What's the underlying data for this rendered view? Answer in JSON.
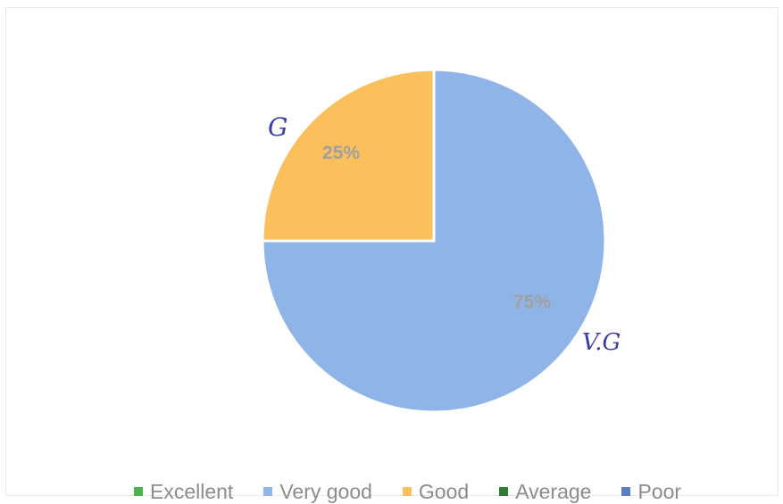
{
  "chart_data": {
    "type": "pie",
    "slices": [
      {
        "category": "Good",
        "value": 25,
        "label": "25%",
        "color": "#fbbf5b",
        "note": "G"
      },
      {
        "category": "Very good",
        "value": 75,
        "label": "75%",
        "color": "#8fb4e8",
        "note": "V.G"
      }
    ],
    "legend": {
      "placement": "bottom",
      "entries": [
        {
          "label": "Excellent",
          "color": "#4caf50"
        },
        {
          "label": "Very good",
          "color": "#8fb4e8"
        },
        {
          "label": "Good",
          "color": "#fbbf5b"
        },
        {
          "label": "Average",
          "color": "#2e7d32"
        },
        {
          "label": "Poor",
          "color": "#5b7fc7"
        }
      ]
    }
  }
}
